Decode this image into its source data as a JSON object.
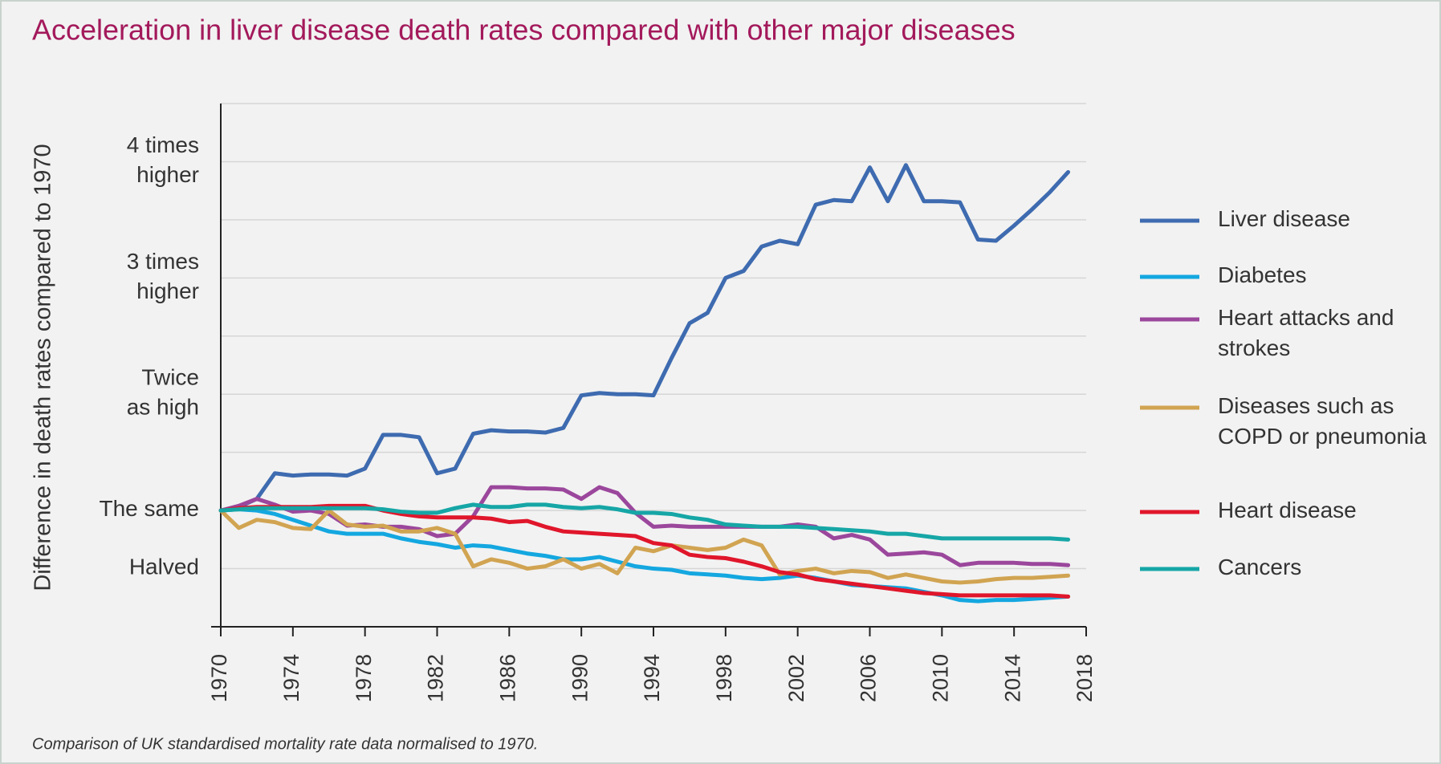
{
  "chart_data": {
    "type": "line",
    "title": "Acceleration in liver disease death rates compared with other major diseases",
    "y_label": "Difference in death rates compared to 1970",
    "footnote": "Comparison of UK standardised mortality rate data normalised to 1970.",
    "x": [
      1970,
      1971,
      1972,
      1973,
      1974,
      1975,
      1976,
      1977,
      1978,
      1979,
      1980,
      1981,
      1982,
      1983,
      1984,
      1985,
      1986,
      1987,
      1988,
      1989,
      1990,
      1991,
      1992,
      1993,
      1994,
      1995,
      1996,
      1997,
      1998,
      1999,
      2000,
      2001,
      2002,
      2003,
      2004,
      2005,
      2006,
      2007,
      2008,
      2009,
      2010,
      2011,
      2012,
      2013,
      2014,
      2015,
      2016,
      2017
    ],
    "xlim": [
      1970,
      2018
    ],
    "xticks": [
      1970,
      1974,
      1978,
      1982,
      1986,
      1990,
      1994,
      1998,
      2002,
      2006,
      2010,
      2014,
      2018
    ],
    "ylim": [
      0,
      4.5
    ],
    "yticks": [
      {
        "value": 0.5,
        "label": "Halved"
      },
      {
        "value": 1,
        "label": "The same"
      },
      {
        "value": 2,
        "label": "Twice\nas high"
      },
      {
        "value": 3,
        "label": "3 times\nhigher"
      },
      {
        "value": 4,
        "label": "4 times\nhigher"
      }
    ],
    "ygrid": [
      0.5,
      1,
      1.5,
      2,
      2.5,
      3,
      3.5,
      4,
      4.5
    ],
    "grid": true,
    "legend": "right",
    "series": [
      {
        "name": "Liver disease",
        "color": "#3e6bb0",
        "values": [
          1.0,
          1.03,
          1.1,
          1.32,
          1.3,
          1.31,
          1.31,
          1.3,
          1.36,
          1.65,
          1.65,
          1.63,
          1.32,
          1.36,
          1.66,
          1.69,
          1.68,
          1.68,
          1.67,
          1.71,
          1.99,
          2.01,
          2.0,
          2.0,
          1.99,
          2.31,
          2.61,
          2.7,
          3.0,
          3.06,
          3.27,
          3.32,
          3.29,
          3.63,
          3.67,
          3.66,
          3.95,
          3.66,
          3.97,
          3.66,
          3.66,
          3.65,
          3.33,
          3.32,
          3.45,
          3.59,
          3.74,
          3.91
        ]
      },
      {
        "name": "Diabetes",
        "color": "#14a7e0",
        "values": [
          1.0,
          1.01,
          1.0,
          0.97,
          0.92,
          0.87,
          0.82,
          0.8,
          0.8,
          0.8,
          0.76,
          0.73,
          0.71,
          0.68,
          0.7,
          0.69,
          0.66,
          0.63,
          0.61,
          0.58,
          0.58,
          0.6,
          0.56,
          0.52,
          0.5,
          0.49,
          0.46,
          0.45,
          0.44,
          0.42,
          0.41,
          0.42,
          0.44,
          0.42,
          0.39,
          0.36,
          0.35,
          0.34,
          0.33,
          0.3,
          0.27,
          0.23,
          0.22,
          0.23,
          0.23,
          0.24,
          0.25,
          0.26
        ]
      },
      {
        "name": "Heart attacks and strokes",
        "color": "#9b479c",
        "values": [
          1.0,
          1.04,
          1.1,
          1.05,
          0.99,
          1.0,
          0.97,
          0.87,
          0.88,
          0.86,
          0.86,
          0.84,
          0.78,
          0.8,
          0.95,
          1.2,
          1.2,
          1.19,
          1.19,
          1.18,
          1.1,
          1.2,
          1.15,
          0.98,
          0.86,
          0.87,
          0.86,
          0.86,
          0.86,
          0.86,
          0.86,
          0.86,
          0.88,
          0.86,
          0.76,
          0.79,
          0.75,
          0.62,
          0.63,
          0.64,
          0.62,
          0.53,
          0.55,
          0.55,
          0.55,
          0.54,
          0.54,
          0.53
        ]
      },
      {
        "name": "Diseases such as COPD or pneumonia",
        "color": "#d1a452",
        "values": [
          1.0,
          0.85,
          0.92,
          0.9,
          0.85,
          0.84,
          1.0,
          0.88,
          0.86,
          0.87,
          0.82,
          0.82,
          0.85,
          0.8,
          0.52,
          0.58,
          0.55,
          0.5,
          0.52,
          0.58,
          0.5,
          0.54,
          0.46,
          0.68,
          0.65,
          0.7,
          0.68,
          0.66,
          0.68,
          0.75,
          0.7,
          0.45,
          0.48,
          0.5,
          0.46,
          0.48,
          0.47,
          0.42,
          0.45,
          0.42,
          0.39,
          0.38,
          0.39,
          0.41,
          0.42,
          0.42,
          0.43,
          0.44
        ]
      },
      {
        "name": "Heart disease",
        "color": "#e0162b",
        "values": [
          1.0,
          1.02,
          1.03,
          1.03,
          1.03,
          1.03,
          1.04,
          1.04,
          1.04,
          1.0,
          0.97,
          0.95,
          0.94,
          0.94,
          0.94,
          0.93,
          0.9,
          0.91,
          0.86,
          0.82,
          0.81,
          0.8,
          0.79,
          0.78,
          0.72,
          0.7,
          0.62,
          0.6,
          0.59,
          0.56,
          0.52,
          0.47,
          0.45,
          0.41,
          0.39,
          0.37,
          0.35,
          0.33,
          0.31,
          0.29,
          0.28,
          0.27,
          0.27,
          0.27,
          0.27,
          0.27,
          0.27,
          0.26
        ]
      },
      {
        "name": "Cancers",
        "color": "#16a6a6",
        "values": [
          1.0,
          1.01,
          1.02,
          1.02,
          1.02,
          1.02,
          1.02,
          1.02,
          1.02,
          1.01,
          0.99,
          0.98,
          0.98,
          1.02,
          1.05,
          1.03,
          1.03,
          1.05,
          1.05,
          1.03,
          1.02,
          1.03,
          1.01,
          0.98,
          0.98,
          0.97,
          0.94,
          0.92,
          0.88,
          0.87,
          0.86,
          0.86,
          0.86,
          0.85,
          0.84,
          0.83,
          0.82,
          0.8,
          0.8,
          0.78,
          0.76,
          0.76,
          0.76,
          0.76,
          0.76,
          0.76,
          0.76,
          0.75
        ]
      }
    ]
  }
}
